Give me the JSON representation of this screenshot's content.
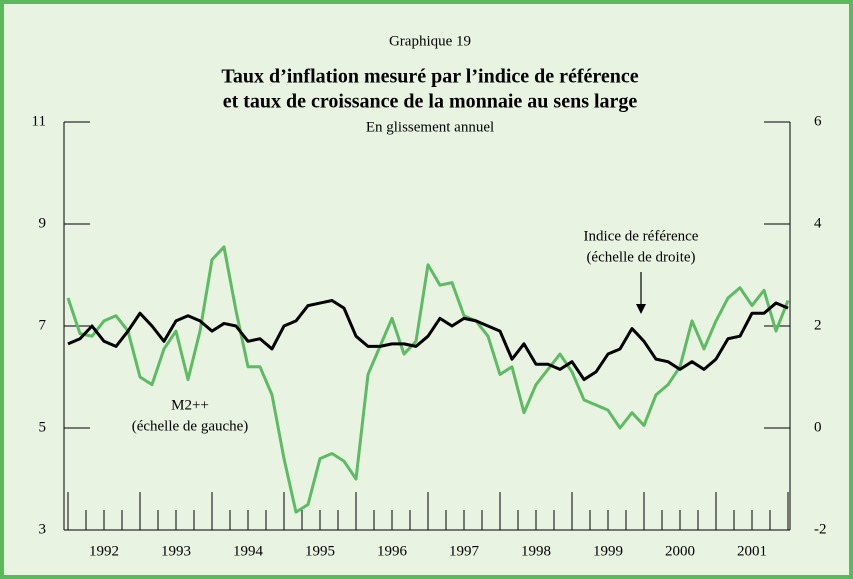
{
  "chart_data": {
    "type": "line",
    "label": "Graphique 19",
    "title": [
      "Taux d’inflation mesuré par l’indice de référence",
      "et taux de croissance de la monnaie au sens large"
    ],
    "subtitle": "En glissement annuel",
    "annotations": [
      [
        "Indice de référence",
        "(échelle de droite)"
      ],
      [
        "M2++",
        "(échelle de gauche)"
      ]
    ],
    "categories": [
      null,
      null,
      null,
      "1992",
      null,
      null,
      null,
      null,
      null,
      "1993",
      null,
      null,
      null,
      null,
      null,
      "1994",
      null,
      null,
      null,
      null,
      null,
      "1995",
      null,
      null,
      null,
      null,
      null,
      "1996",
      null,
      null,
      null,
      null,
      null,
      "1997",
      null,
      null,
      null,
      null,
      null,
      "1998",
      null,
      null,
      null,
      null,
      null,
      "1999",
      null,
      null,
      null,
      null,
      null,
      "2000",
      null,
      null,
      null,
      null,
      null,
      "2001",
      null,
      null,
      null
    ],
    "series": [
      {
        "name": "M2++",
        "color": "#5dbb63",
        "axis": "y",
        "values": [
          7.55,
          6.85,
          6.8,
          7.1,
          7.2,
          6.9,
          6.0,
          5.85,
          6.55,
          6.9,
          5.95,
          6.9,
          8.3,
          8.55,
          7.3,
          6.2,
          6.2,
          5.65,
          4.4,
          3.35,
          3.5,
          4.4,
          4.5,
          4.35,
          4.0,
          6.05,
          6.6,
          7.15,
          6.45,
          6.7,
          8.2,
          7.8,
          7.85,
          7.2,
          7.1,
          6.8,
          6.05,
          6.2,
          5.3,
          5.85,
          6.15,
          6.45,
          6.1,
          5.55,
          5.45,
          5.35,
          5.0,
          5.3,
          5.05,
          5.65,
          5.85,
          6.2,
          7.1,
          6.55,
          7.1,
          7.55,
          7.75,
          7.4,
          7.7,
          6.9,
          7.5
        ]
      },
      {
        "name": "Indice de référence",
        "color": "#000000",
        "axis": "y2",
        "values": [
          1.65,
          1.75,
          2.0,
          1.7,
          1.6,
          1.9,
          2.25,
          2.0,
          1.7,
          2.1,
          2.2,
          2.1,
          1.9,
          2.05,
          2.0,
          1.7,
          1.75,
          1.55,
          2.0,
          2.1,
          2.4,
          2.45,
          2.5,
          2.35,
          1.8,
          1.6,
          1.6,
          1.65,
          1.65,
          1.6,
          1.8,
          2.15,
          2.0,
          2.15,
          2.1,
          2.0,
          1.9,
          1.35,
          1.65,
          1.25,
          1.25,
          1.15,
          1.3,
          0.95,
          1.1,
          1.45,
          1.55,
          1.95,
          1.7,
          1.35,
          1.3,
          1.15,
          1.3,
          1.15,
          1.35,
          1.75,
          1.8,
          2.25,
          2.25,
          2.45,
          2.35
        ]
      }
    ],
    "ylim": [
      3,
      11
    ],
    "yticks": [
      3,
      5,
      7,
      9,
      11
    ],
    "y2lim": [
      -2,
      6
    ],
    "y2ticks": [
      -2,
      0,
      2,
      4,
      6
    ]
  }
}
